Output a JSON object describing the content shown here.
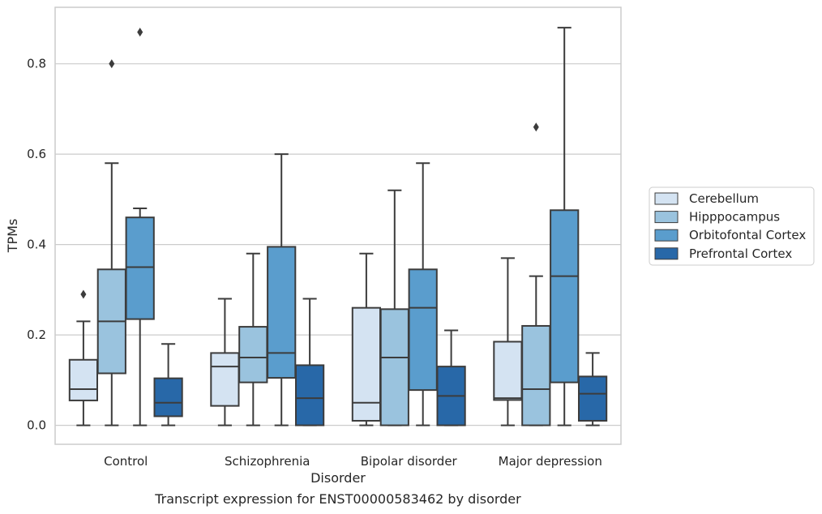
{
  "caption": "Transcript expression for ENST00000583462 by disorder",
  "chart_data": {
    "type": "box",
    "xlabel": "Disorder",
    "ylabel": "TPMs",
    "ylim": [
      -0.042,
      0.925
    ],
    "yticks": [
      0.0,
      0.2,
      0.4,
      0.6,
      0.8
    ],
    "ytick_labels": [
      "0.0",
      "0.2",
      "0.4",
      "0.6",
      "0.8"
    ],
    "grid": "horizontal",
    "legend_position": "center-right",
    "categories": [
      "Control",
      "Schizophrenia",
      "Bipolar disorder",
      "Major depression"
    ],
    "series": [
      {
        "name": "Cerebellum",
        "color": "#d4e3f2",
        "boxes": [
          {
            "whislo": 0.0,
            "q1": 0.055,
            "med": 0.08,
            "q3": 0.145,
            "whishi": 0.23,
            "fliers": [
              0.29
            ]
          },
          {
            "whislo": 0.0,
            "q1": 0.043,
            "med": 0.13,
            "q3": 0.16,
            "whishi": 0.28,
            "fliers": []
          },
          {
            "whislo": 0.0,
            "q1": 0.01,
            "med": 0.05,
            "q3": 0.26,
            "whishi": 0.38,
            "fliers": []
          },
          {
            "whislo": 0.0,
            "q1": 0.056,
            "med": 0.06,
            "q3": 0.185,
            "whishi": 0.37,
            "fliers": []
          }
        ]
      },
      {
        "name": "Hipppocampus",
        "color": "#9ac3de",
        "boxes": [
          {
            "whislo": 0.0,
            "q1": 0.115,
            "med": 0.23,
            "q3": 0.345,
            "whishi": 0.58,
            "fliers": [
              0.8
            ]
          },
          {
            "whislo": 0.0,
            "q1": 0.095,
            "med": 0.15,
            "q3": 0.218,
            "whishi": 0.38,
            "fliers": []
          },
          {
            "whislo": 0.0,
            "q1": 0.0,
            "med": 0.15,
            "q3": 0.257,
            "whishi": 0.52,
            "fliers": []
          },
          {
            "whislo": 0.0,
            "q1": 0.0,
            "med": 0.08,
            "q3": 0.22,
            "whishi": 0.33,
            "fliers": [
              0.66
            ]
          }
        ]
      },
      {
        "name": "Orbitofontal Cortex",
        "color": "#5a9dcd",
        "boxes": [
          {
            "whislo": 0.0,
            "q1": 0.235,
            "med": 0.35,
            "q3": 0.46,
            "whishi": 0.48,
            "fliers": [
              0.87
            ]
          },
          {
            "whislo": 0.0,
            "q1": 0.105,
            "med": 0.16,
            "q3": 0.395,
            "whishi": 0.6,
            "fliers": []
          },
          {
            "whislo": 0.0,
            "q1": 0.078,
            "med": 0.26,
            "q3": 0.345,
            "whishi": 0.58,
            "fliers": []
          },
          {
            "whislo": 0.0,
            "q1": 0.095,
            "med": 0.33,
            "q3": 0.476,
            "whishi": 0.88,
            "fliers": []
          }
        ]
      },
      {
        "name": "Prefrontal Cortex",
        "color": "#2868a8",
        "boxes": [
          {
            "whislo": 0.0,
            "q1": 0.02,
            "med": 0.05,
            "q3": 0.104,
            "whishi": 0.18,
            "fliers": []
          },
          {
            "whislo": 0.0,
            "q1": 0.0,
            "med": 0.06,
            "q3": 0.133,
            "whishi": 0.28,
            "fliers": []
          },
          {
            "whislo": 0.0,
            "q1": 0.0,
            "med": 0.065,
            "q3": 0.13,
            "whishi": 0.21,
            "fliers": []
          },
          {
            "whislo": 0.0,
            "q1": 0.01,
            "med": 0.07,
            "q3": 0.108,
            "whishi": 0.16,
            "fliers": []
          }
        ]
      }
    ]
  }
}
